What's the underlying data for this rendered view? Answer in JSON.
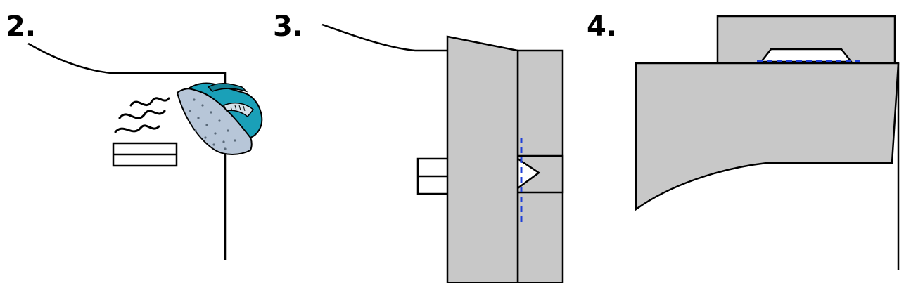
{
  "steps": [
    {
      "number": "2.",
      "action": "press-with-iron"
    },
    {
      "number": "3.",
      "action": "fold-and-stitch"
    },
    {
      "number": "4.",
      "action": "stitch-under-fold"
    }
  ],
  "colors": {
    "fabric": "#c8c8c8",
    "outline": "#000000",
    "stitch_line": "#1f3fd6",
    "iron_body": "#1aa0b8",
    "iron_plate": "#b7c6d8"
  },
  "icons": [
    "iron-icon",
    "steam-icon"
  ]
}
